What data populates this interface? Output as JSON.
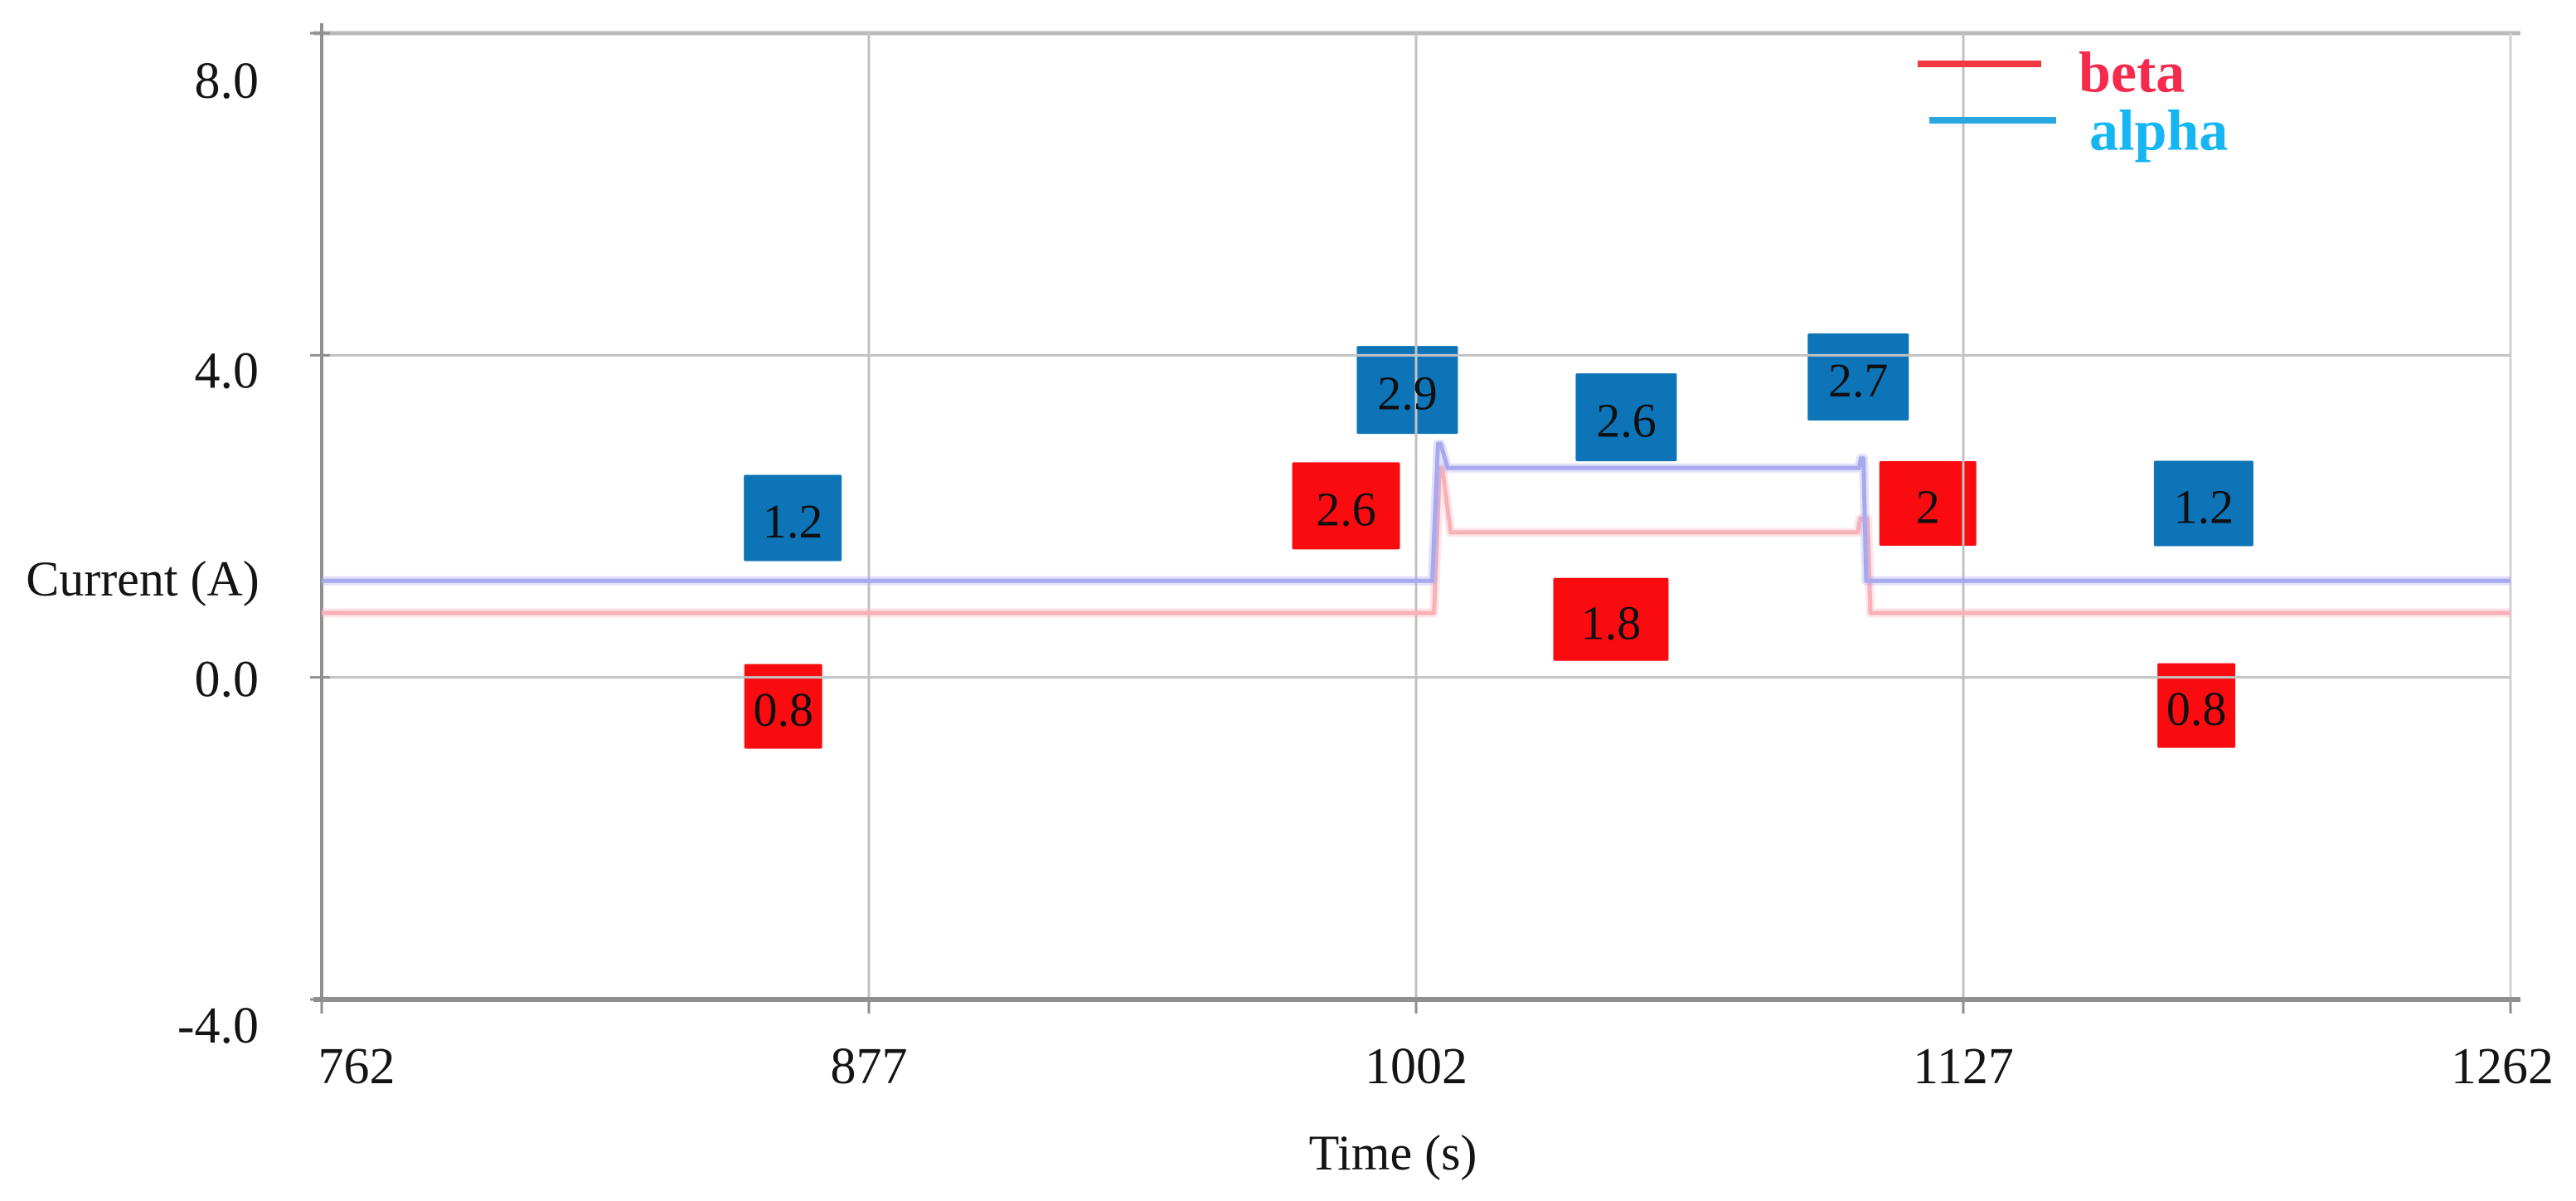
{
  "chart_data": {
    "type": "line",
    "title": "",
    "xlabel": "Time (s)",
    "ylabel": "Current (A)",
    "x_range": [
      762,
      1262
    ],
    "y_range": [
      -4,
      8
    ],
    "grid": true,
    "legend_position": "top-right",
    "x_ticks": [
      {
        "value": 762,
        "label": "762"
      },
      {
        "value": 877,
        "label": "877"
      },
      {
        "value": 1002,
        "label": "1002"
      },
      {
        "value": 1127,
        "label": "1127"
      },
      {
        "value": 1262,
        "label": "1262"
      }
    ],
    "y_ticks": [
      {
        "value": 8,
        "label": "8.0"
      },
      {
        "value": 4,
        "label": "4.0"
      },
      {
        "value": 0,
        "label": "0.0"
      },
      {
        "value": -4,
        "label": "-4.0"
      }
    ],
    "series": [
      {
        "name": "beta",
        "line_color": "#f9b1b9",
        "legend_line_color": "#f23840",
        "legend_text_color": "#f52a4c",
        "points": [
          [
            762,
            0.8
          ],
          [
            1006.1,
            0.8
          ],
          [
            1007.4,
            2.6
          ],
          [
            1008.0,
            2.6
          ],
          [
            1009.9,
            1.8
          ],
          [
            1102.9,
            1.8
          ],
          [
            1103.4,
            1.97
          ],
          [
            1105.1,
            1.97
          ],
          [
            1105.8,
            0.8
          ],
          [
            1262,
            0.8
          ]
        ]
      },
      {
        "name": "alpha",
        "line_color": "#a8a8ee",
        "legend_line_color": "#2aa7e0",
        "legend_text_color": "#16b6f2",
        "points": [
          [
            762,
            1.2
          ],
          [
            1005.7,
            1.2
          ],
          [
            1007.0,
            2.9
          ],
          [
            1007.6,
            2.9
          ],
          [
            1009.2,
            2.6
          ],
          [
            1103.2,
            2.6
          ],
          [
            1103.6,
            2.72
          ],
          [
            1104.2,
            2.72
          ],
          [
            1104.8,
            1.2
          ],
          [
            1262,
            1.2
          ]
        ]
      }
    ],
    "annotations": [
      {
        "series": "alpha",
        "label": "1.2",
        "t": 861,
        "a": 1.98,
        "w": 118,
        "h": 104
      },
      {
        "series": "beta",
        "label": "0.8",
        "t": 859,
        "a": -0.36,
        "w": 94,
        "h": 102
      },
      {
        "series": "beta",
        "label": "2.6",
        "t": 986,
        "a": 2.13,
        "w": 130,
        "h": 105
      },
      {
        "series": "alpha",
        "label": "2.9",
        "t": 1000,
        "a": 3.57,
        "w": 122,
        "h": 106
      },
      {
        "series": "alpha",
        "label": "2.6",
        "t": 1050,
        "a": 3.23,
        "w": 122,
        "h": 106
      },
      {
        "series": "beta",
        "label": "1.8",
        "t": 1046.5,
        "a": 0.72,
        "w": 139,
        "h": 100
      },
      {
        "series": "alpha",
        "label": "2.7",
        "t": 1103,
        "a": 3.73,
        "w": 122,
        "h": 105
      },
      {
        "series": "beta",
        "label": "2",
        "t": 1118.9,
        "a": 2.16,
        "w": 117,
        "h": 102
      },
      {
        "series": "alpha",
        "label": "1.2",
        "t": 1186.3,
        "a": 2.16,
        "w": 120,
        "h": 103
      },
      {
        "series": "beta",
        "label": "0.8",
        "t": 1184.5,
        "a": -0.35,
        "w": 94,
        "h": 102
      }
    ],
    "colors": {
      "alpha_box": "#0d74b8",
      "beta_box": "#fa0b10",
      "annotation_text": "#101010",
      "grid": "#c2c2c2",
      "axis": "#8f8f8f",
      "top_border": "#bababa",
      "right_border": "#d2d2d2",
      "tick_text": "#141414"
    }
  }
}
